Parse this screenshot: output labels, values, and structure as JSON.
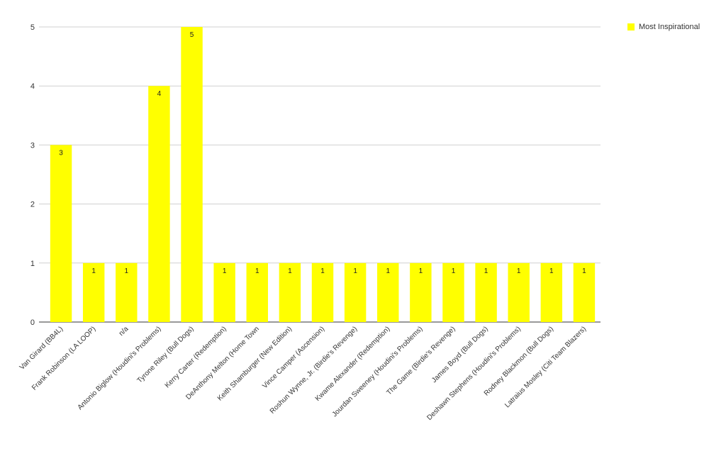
{
  "chart_data": {
    "type": "bar",
    "title": "",
    "xlabel": "",
    "ylabel": "",
    "ylim": [
      0,
      5
    ],
    "yticks": [
      0,
      1,
      2,
      3,
      4,
      5
    ],
    "grid": true,
    "legend_position": "top-right",
    "series": [
      {
        "name": "Most Inspirational",
        "color": "#ffff00",
        "values": [
          3,
          1,
          1,
          4,
          5,
          1,
          1,
          1,
          1,
          1,
          1,
          1,
          1,
          1,
          1,
          1,
          1
        ]
      }
    ],
    "categories": [
      "Van Girard (BB4L)",
      "Frank Robinson (LA LOOP)",
      "n/a",
      "Antonio Biglow (Houdini's Problems)",
      "Tyrone Riley (Bull Dogs)",
      "Kerry Carter (Redemption)",
      "DeAnthony Melton (Home Town",
      "Keith Shamburger (New Edition)",
      "Vince Camper (Ascension)",
      "Roshun Wynne, Jr. (Birdie's Revenge)",
      "Kwame Alexander (Redemption)",
      "Jourdan Sweeney (Houdini's Problems)",
      "The Game (Birdie's Revenge)",
      "James Boyd (Bull Dogs)",
      "Deshawn Stephens (Houdini's Problems)",
      "Rodney Blackmon (Bull Dogs)",
      "Latraius Mosley (Citi Team Blazers)"
    ]
  }
}
